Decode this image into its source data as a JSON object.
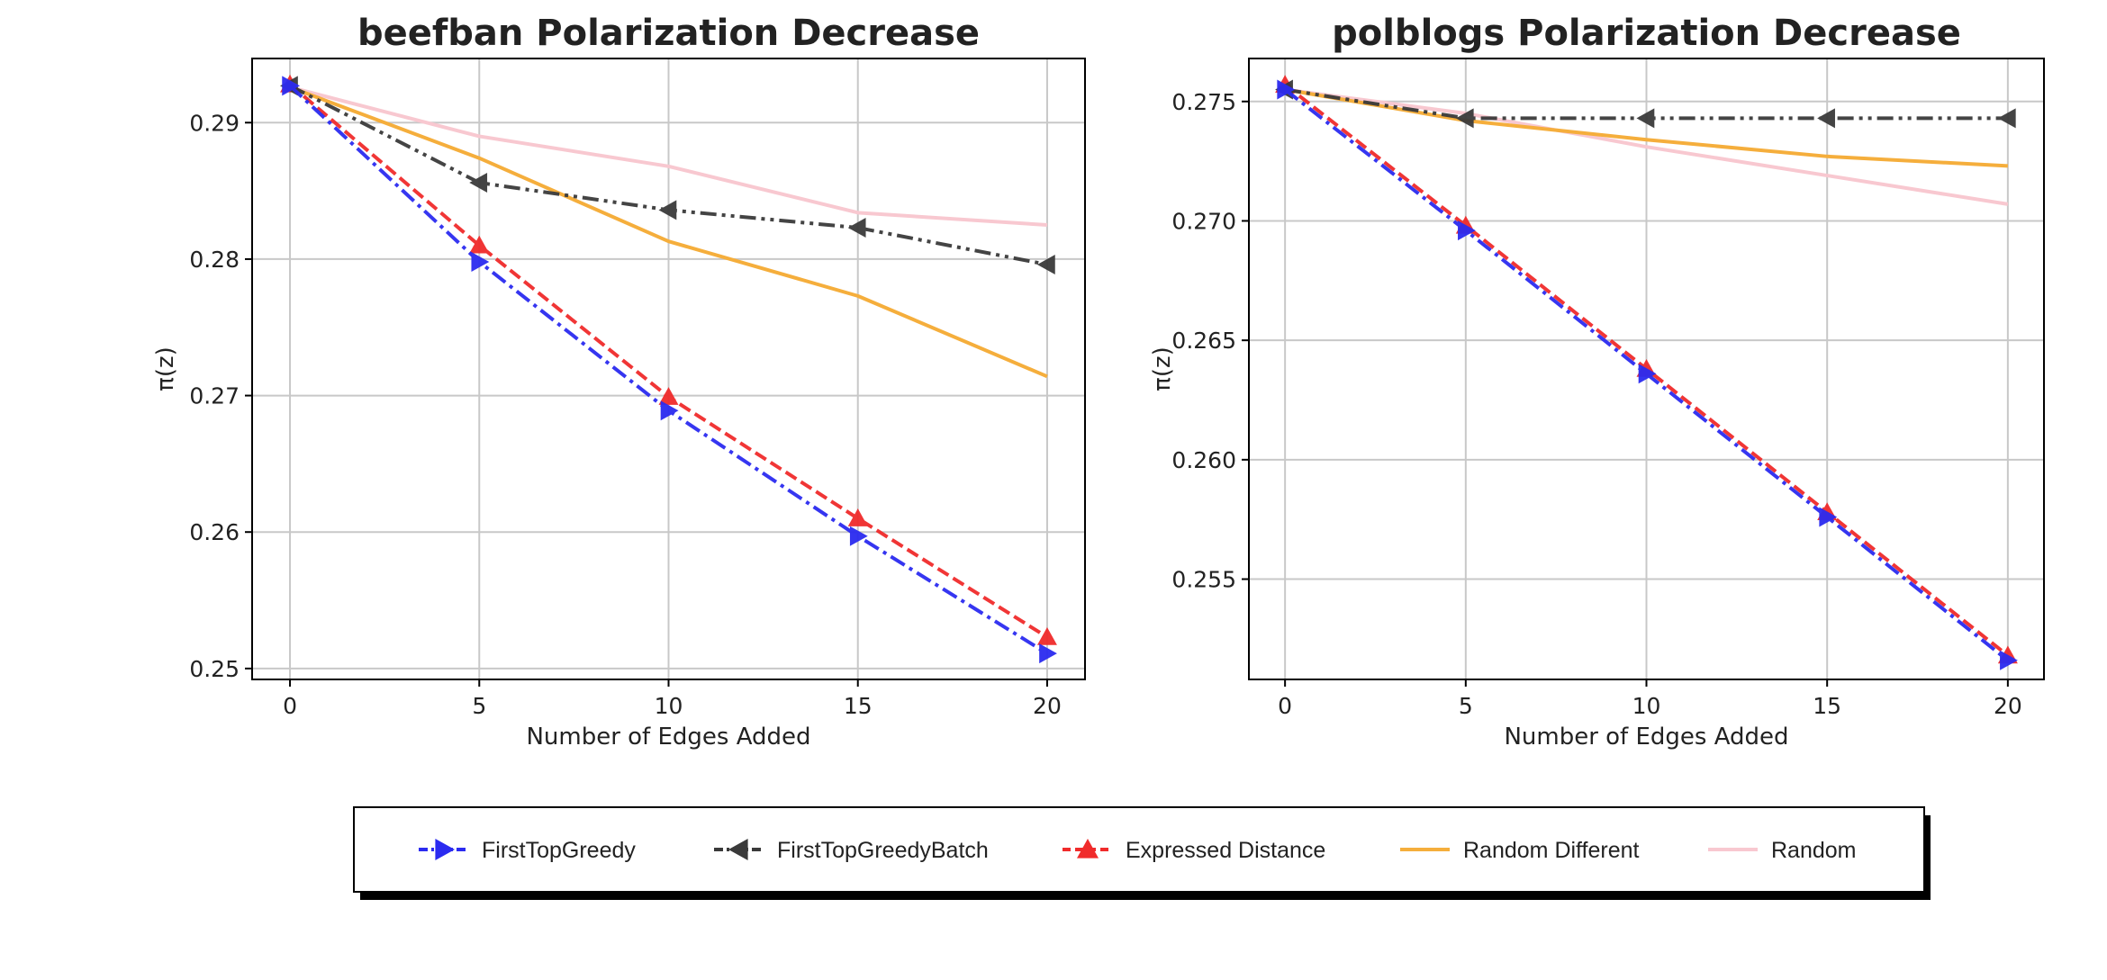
{
  "chart_data": [
    {
      "type": "line",
      "title": "beefban Polarization Decrease",
      "xlabel": "Number of Edges Added",
      "ylabel": "π(z)",
      "xlim": [
        -1,
        21
      ],
      "ylim": [
        0.2492,
        0.2947
      ],
      "xticks": [
        "0",
        "5",
        "10",
        "15",
        "20"
      ],
      "yticks": [
        "0.25",
        "0.26",
        "0.27",
        "0.28",
        "0.29"
      ],
      "grid": true,
      "x": [
        0,
        5,
        10,
        15,
        20
      ],
      "series": [
        {
          "name": "FirstTopGreedy",
          "values": [
            0.2927,
            0.2798,
            0.2689,
            0.2597,
            0.2511
          ]
        },
        {
          "name": "FirstTopGreedyBatch",
          "values": [
            0.2927,
            0.2856,
            0.2836,
            0.2823,
            0.2796
          ]
        },
        {
          "name": "Expressed Distance",
          "values": [
            0.2928,
            0.281,
            0.2699,
            0.261,
            0.2523
          ]
        },
        {
          "name": "Random Different",
          "values": [
            0.2926,
            0.2874,
            0.2813,
            0.2773,
            0.2714
          ]
        },
        {
          "name": "Random",
          "values": [
            0.2926,
            0.289,
            0.2868,
            0.2834,
            0.2825
          ]
        }
      ]
    },
    {
      "type": "line",
      "title": "polblogs Polarization Decrease",
      "xlabel": "Number of Edges Added",
      "ylabel": "π(z)",
      "xlim": [
        -1,
        21
      ],
      "ylim": [
        0.2508,
        0.2768
      ],
      "xticks": [
        "0",
        "5",
        "10",
        "15",
        "20"
      ],
      "yticks": [
        "0.255",
        "0.260",
        "0.265",
        "0.270",
        "0.275"
      ],
      "grid": true,
      "x": [
        0,
        5,
        10,
        15,
        20
      ],
      "series": [
        {
          "name": "FirstTopGreedy",
          "values": [
            0.2755,
            0.2696,
            0.2636,
            0.2576,
            0.2516
          ]
        },
        {
          "name": "FirstTopGreedyBatch",
          "values": [
            0.2755,
            0.2743,
            0.2743,
            0.2743,
            0.2743
          ]
        },
        {
          "name": "Expressed Distance",
          "values": [
            0.2757,
            0.2698,
            0.2638,
            0.2578,
            0.2518
          ]
        },
        {
          "name": "Random Different",
          "values": [
            0.2755,
            0.2742,
            0.2734,
            0.2727,
            0.2723
          ]
        },
        {
          "name": "Random",
          "values": [
            0.2755,
            0.2745,
            0.2731,
            0.2719,
            0.2707
          ]
        }
      ]
    }
  ],
  "legend": {
    "placement": "bottom-center",
    "entries": [
      {
        "name": "FirstTopGreedy",
        "color": "#2b2bf0",
        "marker": "triangle-right"
      },
      {
        "name": "FirstTopGreedyBatch",
        "color": "#3a3a3a",
        "marker": "triangle-left"
      },
      {
        "name": "Expressed Distance",
        "color": "#f02b2b",
        "marker": "triangle-up"
      },
      {
        "name": "Random Different",
        "color": "#f5ae3c",
        "marker": "none"
      },
      {
        "name": "Random",
        "color": "#f8c8d0",
        "marker": "none"
      }
    ]
  }
}
